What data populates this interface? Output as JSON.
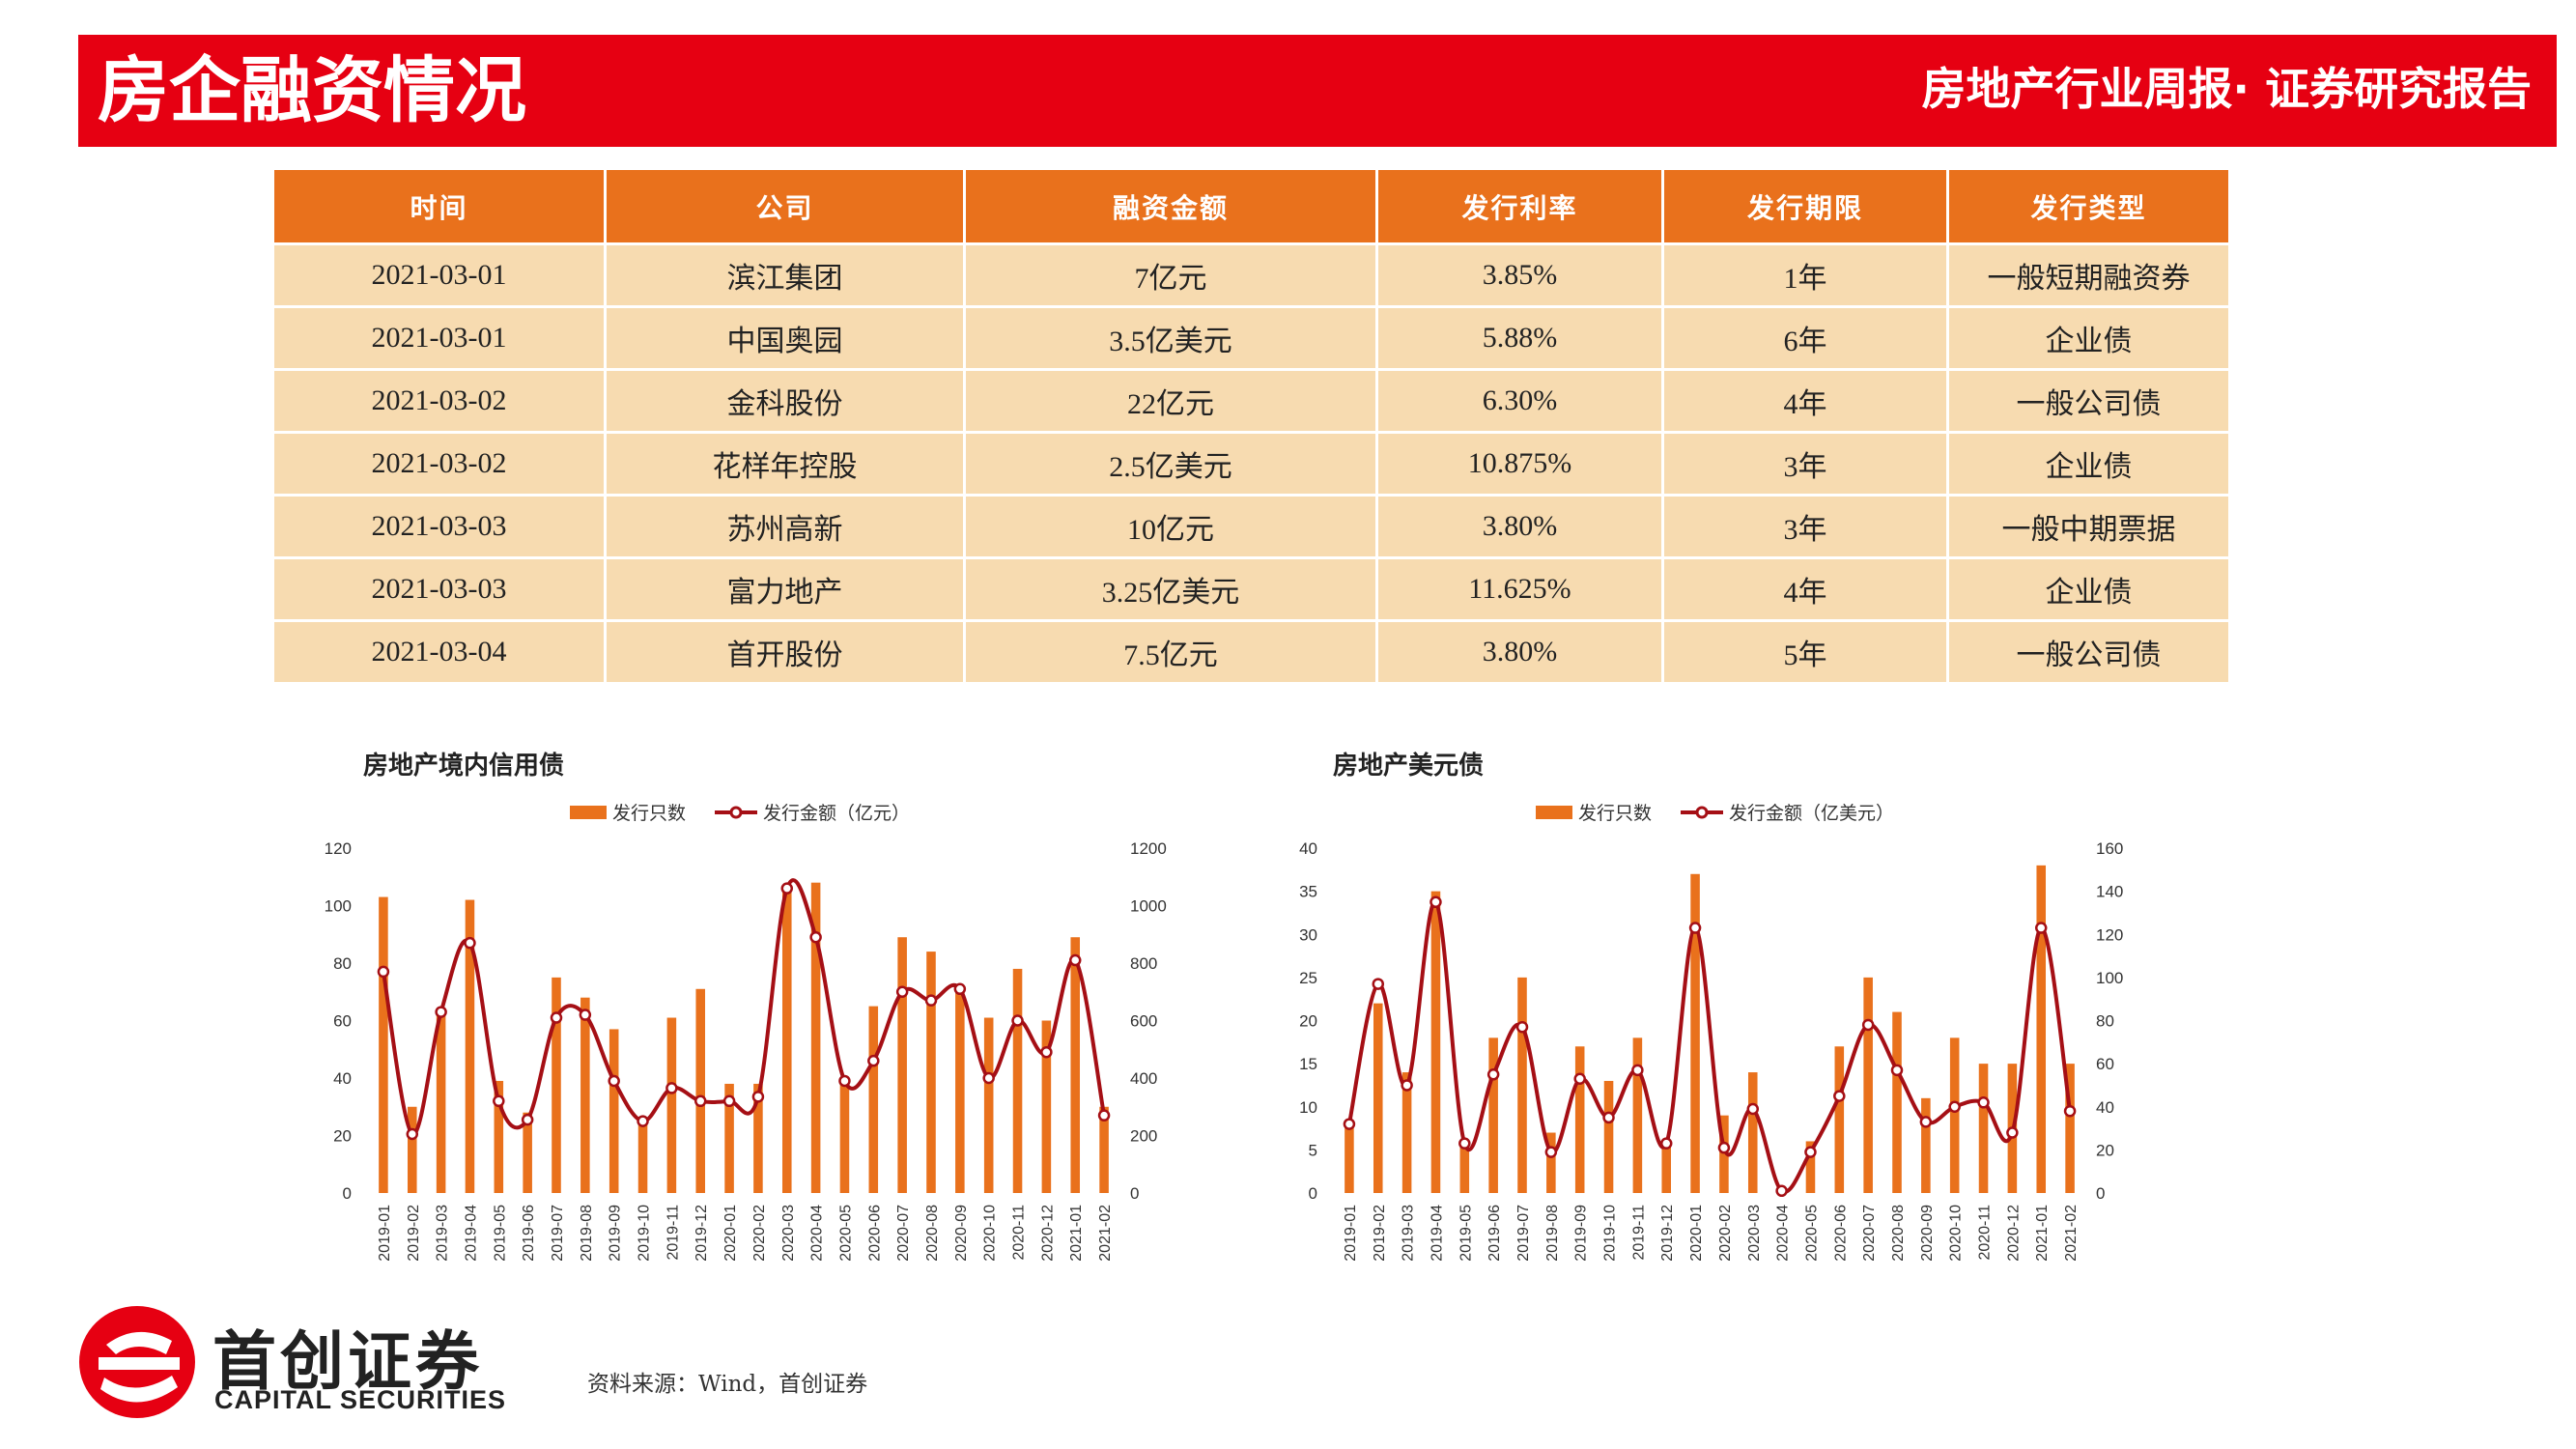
{
  "header": {
    "title": "房企融资情况",
    "subtitle": "房地产行业周报· 证券研究报告"
  },
  "table": {
    "headers": [
      "时间",
      "公司",
      "融资金额",
      "发行利率",
      "发行期限",
      "发行类型"
    ],
    "rows": [
      [
        "2021-03-01",
        "滨江集团",
        "7亿元",
        "3.85%",
        "1年",
        "一般短期融资券"
      ],
      [
        "2021-03-01",
        "中国奥园",
        "3.5亿美元",
        "5.88%",
        "6年",
        "企业债"
      ],
      [
        "2021-03-02",
        "金科股份",
        "22亿元",
        "6.30%",
        "4年",
        "一般公司债"
      ],
      [
        "2021-03-02",
        "花样年控股",
        "2.5亿美元",
        "10.875%",
        "3年",
        "企业债"
      ],
      [
        "2021-03-03",
        "苏州高新",
        "10亿元",
        "3.80%",
        "3年",
        "一般中期票据"
      ],
      [
        "2021-03-03",
        "富力地产",
        "3.25亿美元",
        "11.625%",
        "4年",
        "企业债"
      ],
      [
        "2021-03-04",
        "首开股份",
        "7.5亿元",
        "3.80%",
        "5年",
        "一般公司债"
      ]
    ]
  },
  "chart_data": [
    {
      "type": "bar+line",
      "title": "房地产境内信用债",
      "categories": [
        "2019-01",
        "2019-02",
        "2019-03",
        "2019-04",
        "2019-05",
        "2019-06",
        "2019-07",
        "2019-08",
        "2019-09",
        "2019-10",
        "2019-11",
        "2019-12",
        "2020-01",
        "2020-02",
        "2020-03",
        "2020-04",
        "2020-05",
        "2020-06",
        "2020-07",
        "2020-08",
        "2020-09",
        "2020-10",
        "2020-11",
        "2020-12",
        "2021-01",
        "2021-02"
      ],
      "series": [
        {
          "name": "发行只数",
          "kind": "bar",
          "axis": "left",
          "color": "#e9711c",
          "values": [
            103,
            30,
            62,
            102,
            39,
            28,
            75,
            68,
            57,
            25,
            61,
            71,
            38,
            38,
            107,
            108,
            40,
            65,
            89,
            84,
            70,
            61,
            78,
            60,
            89,
            30
          ]
        },
        {
          "name": "发行金额（亿元）",
          "kind": "line",
          "axis": "right",
          "color": "#a50f15",
          "values": [
            770,
            205,
            630,
            870,
            320,
            255,
            610,
            620,
            390,
            250,
            365,
            320,
            320,
            335,
            1060,
            890,
            390,
            460,
            700,
            670,
            710,
            400,
            600,
            490,
            810,
            270
          ]
        }
      ],
      "y_left": {
        "min": 0,
        "max": 120,
        "ticks": [
          0,
          20,
          40,
          60,
          80,
          100,
          120
        ]
      },
      "y_right": {
        "min": 0,
        "max": 1200,
        "ticks": [
          0,
          200,
          400,
          600,
          800,
          1000,
          1200
        ]
      },
      "legend": "top-center"
    },
    {
      "type": "bar+line",
      "title": "房地产美元债",
      "categories": [
        "2019-01",
        "2019-02",
        "2019-03",
        "2019-04",
        "2019-05",
        "2019-06",
        "2019-07",
        "2019-08",
        "2019-09",
        "2019-10",
        "2019-11",
        "2019-12",
        "2020-01",
        "2020-02",
        "2020-03",
        "2020-04",
        "2020-05",
        "2020-06",
        "2020-07",
        "2020-08",
        "2020-09",
        "2020-10",
        "2020-11",
        "2020-12",
        "2021-01",
        "2021-02"
      ],
      "series": [
        {
          "name": "发行只数",
          "kind": "bar",
          "axis": "left",
          "color": "#e9711c",
          "values": [
            8,
            22,
            14,
            35,
            6,
            18,
            25,
            7,
            17,
            13,
            18,
            6,
            37,
            9,
            14,
            0,
            6,
            17,
            25,
            21,
            11,
            18,
            15,
            15,
            38,
            15
          ]
        },
        {
          "name": "发行金额（亿美元）",
          "kind": "line",
          "axis": "right",
          "color": "#a50f15",
          "values": [
            32,
            97,
            50,
            135,
            23,
            55,
            77,
            19,
            53,
            35,
            57,
            23,
            123,
            21,
            39,
            1,
            19,
            45,
            78,
            57,
            33,
            40,
            42,
            28,
            123,
            38
          ]
        }
      ],
      "y_left": {
        "min": 0,
        "max": 40,
        "ticks": [
          0,
          5,
          10,
          15,
          20,
          25,
          30,
          35,
          40
        ]
      },
      "y_right": {
        "min": 0,
        "max": 160,
        "ticks": [
          0,
          20,
          40,
          60,
          80,
          100,
          120,
          140,
          160
        ]
      },
      "legend": "top-center"
    }
  ],
  "footer": {
    "logo_cn": "首创证券",
    "logo_en": "CAPITAL SECURITIES",
    "source": "资料来源：Wind，首创证券"
  },
  "colors": {
    "brand_red": "#e60012",
    "table_header": "#e9711c",
    "table_body": "#f7dbb0",
    "bar": "#e9711c",
    "line": "#a50f15"
  }
}
